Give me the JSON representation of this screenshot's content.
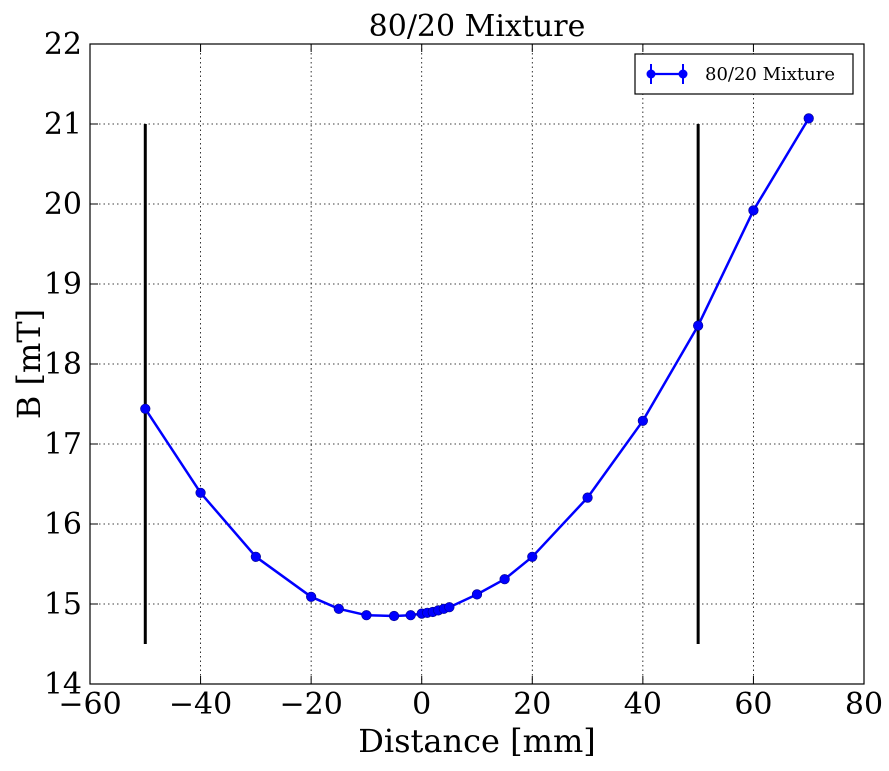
{
  "chart_data": {
    "type": "line",
    "title": "80/20 Mixture",
    "xlabel": "Distance [mm]",
    "ylabel": "B [mT]",
    "xlim": [
      -60,
      80
    ],
    "ylim": [
      14,
      22
    ],
    "grid": true,
    "legend_position": "top-right",
    "x_ticks": [
      -60,
      -40,
      -20,
      0,
      20,
      40,
      60,
      80
    ],
    "x_tick_labels": [
      "−60",
      "−40",
      "−20",
      "0",
      "20",
      "40",
      "60",
      "80"
    ],
    "y_ticks": [
      14,
      15,
      16,
      17,
      18,
      19,
      20,
      21,
      22
    ],
    "y_tick_labels": [
      "14",
      "15",
      "16",
      "17",
      "18",
      "19",
      "20",
      "21",
      "22"
    ],
    "series": [
      {
        "name": "80/20 Mixture",
        "color": "#0000ff",
        "x": [
          -50,
          -40,
          -30,
          -20,
          -15,
          -10,
          -5,
          -2,
          0,
          1,
          2,
          3,
          4,
          5,
          10,
          15,
          20,
          30,
          40,
          50,
          60,
          70
        ],
        "y": [
          17.44,
          16.39,
          15.59,
          15.09,
          14.94,
          14.86,
          14.85,
          14.86,
          14.88,
          14.89,
          14.9,
          14.92,
          14.94,
          14.96,
          15.12,
          15.31,
          15.59,
          16.33,
          17.29,
          18.48,
          19.92,
          21.07
        ]
      }
    ],
    "vertical_lines": [
      {
        "x": -50,
        "y_range": [
          14.5,
          21
        ],
        "color": "#000000"
      },
      {
        "x": 50,
        "y_range": [
          14.5,
          21
        ],
        "color": "#000000"
      }
    ]
  }
}
